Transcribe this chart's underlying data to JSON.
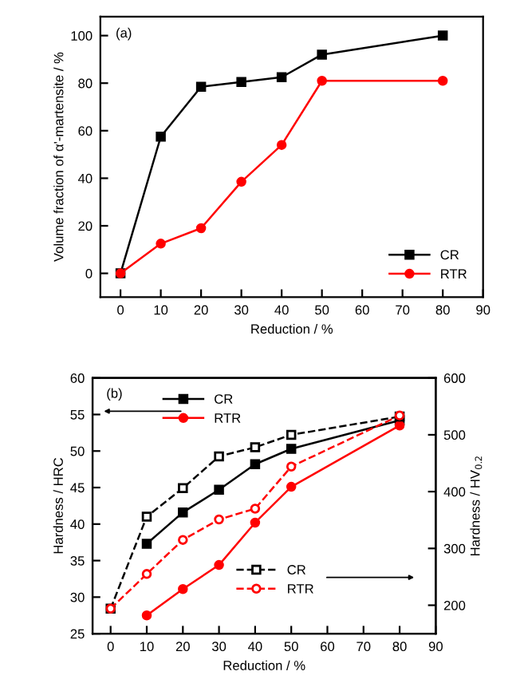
{
  "chart_data": [
    {
      "type": "line",
      "xlabel": "Reduction / %",
      "ylabel": "Volume fraction of α'-martensite / %",
      "annotations": [
        "(a)"
      ],
      "x": [
        0,
        10,
        20,
        30,
        40,
        50,
        80
      ],
      "xlim": [
        -5,
        90
      ],
      "xticks": [
        0,
        10,
        20,
        30,
        40,
        50,
        60,
        70,
        80,
        90
      ],
      "ylim": [
        -10,
        108
      ],
      "yticks": [
        0,
        20,
        40,
        60,
        80,
        100
      ],
      "grid": false,
      "legend": "lower right",
      "line_style": "solid",
      "series": [
        {
          "name": "CR",
          "color": "#000000",
          "marker": "square",
          "values": [
            0,
            57.5,
            78.5,
            80.5,
            82.5,
            92,
            100
          ]
        },
        {
          "name": "RTR",
          "color": "#ff0000",
          "marker": "circle",
          "values": [
            0,
            12.5,
            19,
            38.5,
            54,
            81,
            81
          ]
        }
      ]
    },
    {
      "type": "line",
      "xlabel": "Reduction / %",
      "ylabel": "Hardness / HRC",
      "y2label": "Hardness / HV$_{0.2}$",
      "annotations": [
        "(b)"
      ],
      "xlim": [
        -5,
        90
      ],
      "xticks": [
        0,
        10,
        20,
        30,
        40,
        50,
        60,
        70,
        80,
        90
      ],
      "ylim": [
        25,
        60
      ],
      "yticks": [
        25,
        30,
        35,
        40,
        45,
        50,
        55,
        60
      ],
      "y2lim": [
        150,
        600
      ],
      "y2ticks": [
        200,
        300,
        400,
        500,
        600
      ],
      "grid": false,
      "legend": "top left",
      "series": [
        {
          "name": "CR",
          "color": "#000000",
          "marker": "square",
          "line_style": "solid",
          "x": [
            10,
            20,
            30,
            40,
            50,
            80
          ],
          "values": [
            37.3,
            41.6,
            44.7,
            48.2,
            50.3,
            54.2
          ]
        },
        {
          "name": "RTR",
          "color": "#ff0000",
          "marker": "circle",
          "line_style": "solid",
          "x": [
            10,
            20,
            30,
            40,
            50,
            80
          ],
          "values": [
            27.5,
            31.1,
            34.4,
            40.2,
            45.1,
            53.5
          ]
        },
        {
          "name": "CR",
          "color": "#000000",
          "marker": "square",
          "line_style": "dashed",
          "axis": "y2",
          "x": [
            0,
            10,
            20,
            30,
            40,
            50,
            80
          ],
          "values": [
            194,
            356,
            406,
            462,
            478,
            500,
            532
          ]
        },
        {
          "name": "RTR",
          "color": "#ff0000",
          "marker": "circle",
          "line_style": "dashed",
          "axis": "y2",
          "x": [
            0,
            10,
            20,
            30,
            40,
            50,
            80
          ],
          "values": [
            194,
            255,
            315,
            351,
            370,
            444,
            534
          ]
        }
      ]
    }
  ]
}
